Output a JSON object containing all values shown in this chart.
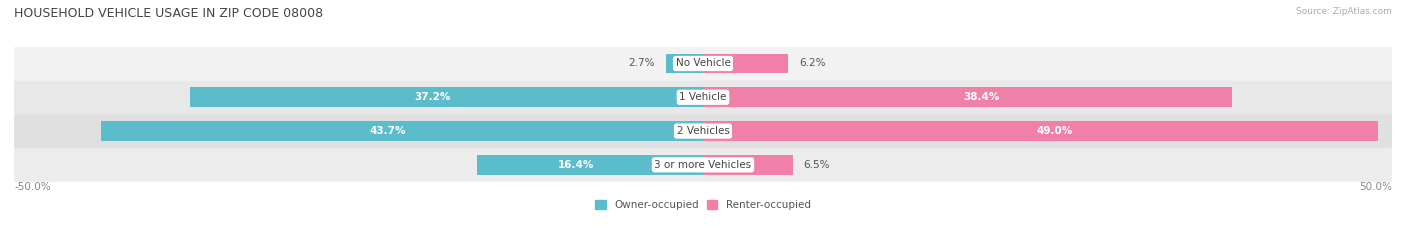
{
  "title": "HOUSEHOLD VEHICLE USAGE IN ZIP CODE 08008",
  "source": "Source: ZipAtlas.com",
  "categories": [
    "No Vehicle",
    "1 Vehicle",
    "2 Vehicles",
    "3 or more Vehicles"
  ],
  "owner_values": [
    2.7,
    37.2,
    43.7,
    16.4
  ],
  "renter_values": [
    6.2,
    38.4,
    49.0,
    6.5
  ],
  "owner_color": "#5bbccc",
  "renter_color": "#f07faa",
  "row_bg_even": "#f0f0f0",
  "row_bg_odd": "#e6e6e6",
  "max_val": 50.0,
  "title_fontsize": 9,
  "source_fontsize": 6.5,
  "label_fontsize": 7.5,
  "cat_fontsize": 7.5,
  "bar_height": 0.58,
  "figsize": [
    14.06,
    2.33
  ],
  "dpi": 100
}
